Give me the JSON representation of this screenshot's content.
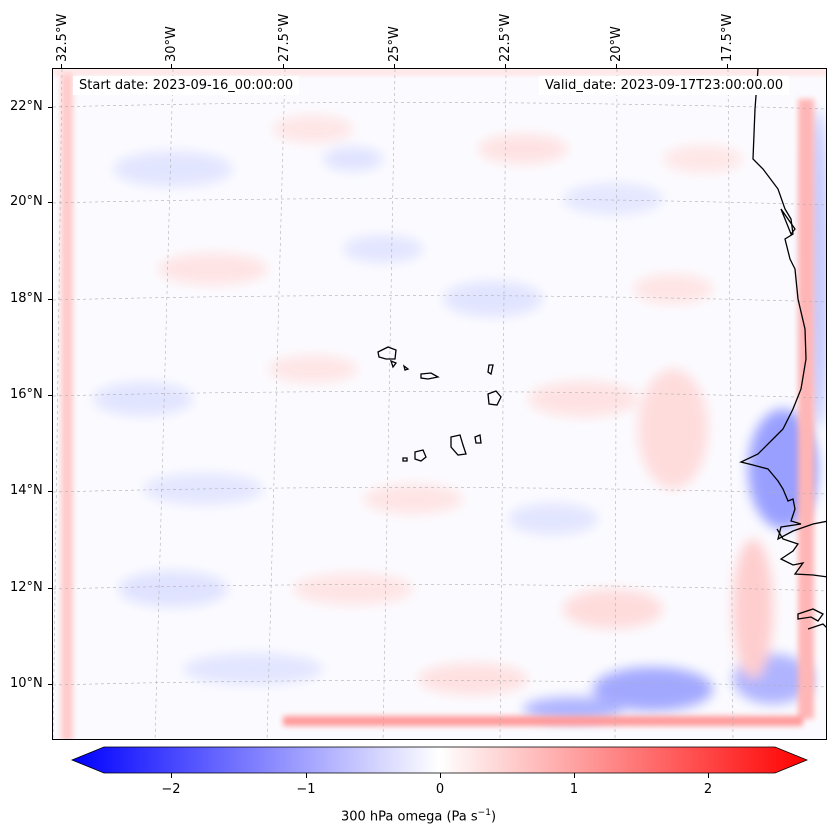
{
  "map": {
    "top_axis_labels": [
      "32.5°W",
      "30°W",
      "27.5°W",
      "25°W",
      "22.5°W",
      "20°W",
      "17.5°W"
    ],
    "left_axis_labels": [
      "22°N",
      "20°N",
      "18°N",
      "16°N",
      "14°N",
      "12°N",
      "10°N"
    ],
    "start_date": "Start date: 2023-09-16_00:00:00",
    "valid_date": "Valid_date: 2023-09-17T23:00:00.00",
    "coastline_color": "#000000",
    "gridline_color": "#b0b0b0",
    "colormap": "bwr"
  },
  "colorbar": {
    "tick_labels": [
      "−2",
      "−1",
      "0",
      "1",
      "2"
    ],
    "title": "300 hPa omega (Pa s",
    "title_exponent": "−1",
    "title_suffix": ")",
    "min_color": "#0000ff",
    "mid_color": "#ffffff",
    "max_color": "#ff0000"
  }
}
